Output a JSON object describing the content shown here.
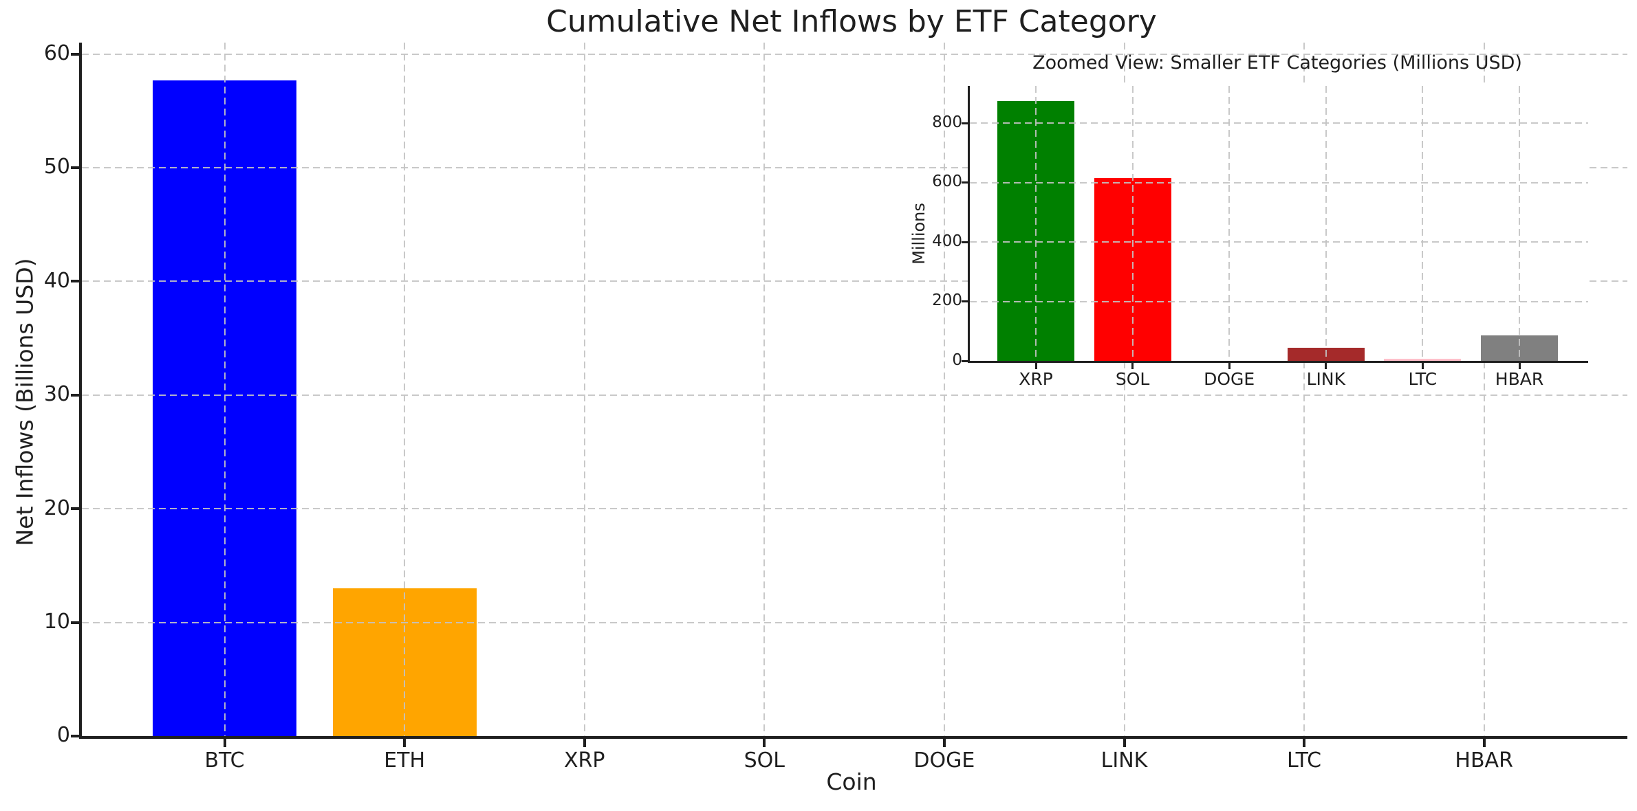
{
  "figure": {
    "background": "#ffffff",
    "text_color": "#1f1f1f",
    "grid_color": "#c3c3c3",
    "grid_style": "dashed"
  },
  "chart_data": [
    {
      "id": "main",
      "type": "bar",
      "title": "Cumulative Net Inflows by ETF Category",
      "xlabel": "Coin",
      "ylabel": "Net Inflows (Billions USD)",
      "categories": [
        "BTC",
        "ETH",
        "XRP",
        "SOL",
        "DOGE",
        "LINK",
        "LTC",
        "HBAR"
      ],
      "values": [
        57.7,
        13.0,
        0,
        0,
        0,
        0,
        0,
        0
      ],
      "bar_colors": [
        "#0000ff",
        "#ffa500",
        "#008000",
        "#ff0000",
        "#800080",
        "#a52a2a",
        "#ffc0cb",
        "#808080"
      ],
      "ylim": [
        0,
        61
      ],
      "yticks": [
        0,
        10,
        20,
        30,
        40,
        50,
        60
      ],
      "grid": "both-dashed",
      "legend": "none"
    },
    {
      "id": "inset",
      "type": "bar",
      "title": "Zoomed View: Smaller ETF Categories (Millions USD)",
      "xlabel": "",
      "ylabel": "Millions",
      "categories": [
        "XRP",
        "SOL",
        "DOGE",
        "LINK",
        "LTC",
        "HBAR"
      ],
      "values": [
        875,
        615,
        1,
        45,
        8,
        85
      ],
      "bar_colors": [
        "#008000",
        "#ff0000",
        "#800080",
        "#a52a2a",
        "#ffc0cb",
        "#808080"
      ],
      "ylim": [
        0,
        925
      ],
      "yticks": [
        0,
        200,
        400,
        600,
        800
      ],
      "grid": "both-dashed",
      "legend": "none"
    }
  ]
}
